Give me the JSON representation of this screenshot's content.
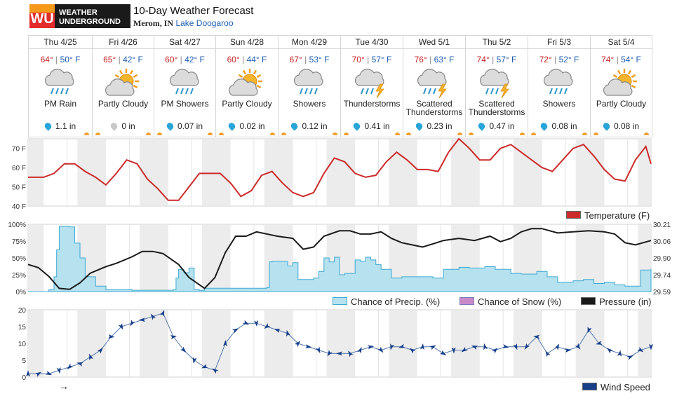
{
  "header": {
    "logo_text_1": "WEATHER",
    "logo_text_2": "UNDERGROUND",
    "title": "10-Day Weather Forecast",
    "city": "Merom, IN",
    "station": "Lake Doogaroo"
  },
  "days": [
    {
      "name": "Thu 4/25",
      "hi": "64°",
      "lo": "50° F",
      "cond": "PM Rain",
      "icon": "rain-icon",
      "precip": "1.1 in"
    },
    {
      "name": "Fri 4/26",
      "hi": "65°",
      "lo": "42° F",
      "cond": "Partly Cloudy",
      "icon": "partly-cloudy-icon",
      "precip": "0 in"
    },
    {
      "name": "Sat 4/27",
      "hi": "60°",
      "lo": "42° F",
      "cond": "PM Showers",
      "icon": "showers-icon",
      "precip": "0.07 in"
    },
    {
      "name": "Sun 4/28",
      "hi": "60°",
      "lo": "44° F",
      "cond": "Partly Cloudy",
      "icon": "partly-cloudy-icon",
      "precip": "0.02 in"
    },
    {
      "name": "Mon 4/29",
      "hi": "67°",
      "lo": "53° F",
      "cond": "Showers",
      "icon": "showers-icon",
      "precip": "0.12 in"
    },
    {
      "name": "Tue 4/30",
      "hi": "70°",
      "lo": "57° F",
      "cond": "Thunderstorms",
      "icon": "thunderstorm-icon",
      "precip": "0.41 in"
    },
    {
      "name": "Wed 5/1",
      "hi": "76°",
      "lo": "63° F",
      "cond": "Scattered Thunderstorms",
      "icon": "thunderstorm-icon",
      "precip": "0.23 in"
    },
    {
      "name": "Thu 5/2",
      "hi": "74°",
      "lo": "57° F",
      "cond": "Scattered Thunderstorms",
      "icon": "thunderstorm-icon",
      "precip": "0.47 in"
    },
    {
      "name": "Fri 5/3",
      "hi": "72°",
      "lo": "52° F",
      "cond": "Showers",
      "icon": "showers-icon",
      "precip": "0.08 in"
    },
    {
      "name": "Sat 5/4",
      "hi": "74°",
      "lo": "54° F",
      "cond": "Partly Cloudy",
      "icon": "partly-cloudy-icon",
      "precip": "0.08 in"
    }
  ],
  "legends": {
    "temperature": "Temperature (F)",
    "precip": "Chance of Precip. (%)",
    "snow": "Chance of Snow (%)",
    "pressure": "Pressure (in)",
    "wind": "Wind Speed"
  },
  "colors": {
    "temperature": "#cc2a2a",
    "precip_fill": "#b6e1ef",
    "precip_line": "#3fa9d0",
    "snow": "#c88bc8",
    "pressure": "#1a1a1a",
    "wind": "#173f8a",
    "night_band": "#ececec"
  },
  "arrow_glyph": "→",
  "chart_data": [
    {
      "type": "line",
      "name": "temperature",
      "ylabel_ticks": [
        "70 F",
        "60 F",
        "50 F",
        "40 F"
      ],
      "ylim": [
        40,
        75
      ],
      "x_hours": [
        0,
        6,
        10,
        14,
        18,
        22,
        26,
        30,
        34,
        38,
        42,
        46,
        50,
        54,
        58,
        62,
        66,
        70,
        74,
        78,
        82,
        86,
        90,
        94,
        98,
        102,
        106,
        110,
        114,
        118,
        122,
        126,
        130,
        134,
        138,
        142,
        146,
        150,
        154,
        158,
        162,
        166,
        170,
        174,
        178,
        182,
        186,
        190,
        194,
        198,
        202,
        206,
        210,
        214,
        218,
        222,
        226,
        230,
        234,
        238,
        240
      ],
      "values": [
        55,
        55,
        57,
        62,
        62,
        58,
        55,
        51,
        57,
        64,
        62,
        54,
        49,
        43,
        43,
        50,
        57,
        57,
        57,
        52,
        45,
        48,
        56,
        58,
        52,
        47,
        45,
        47,
        57,
        65,
        63,
        57,
        55,
        56,
        63,
        68,
        64,
        59,
        59,
        58,
        68,
        75,
        70,
        64,
        64,
        70,
        72,
        68,
        64,
        60,
        58,
        64,
        70,
        72,
        66,
        59,
        54,
        53,
        64,
        71,
        62
      ]
    },
    {
      "type": "area",
      "name": "chance of precip",
      "ylabel_ticks": [
        "100%",
        "75%",
        "50%",
        "25%",
        "0%"
      ],
      "ylim": [
        0,
        100
      ],
      "x_hours": [
        0,
        8,
        10,
        11,
        12,
        16,
        18,
        20,
        22,
        26,
        30,
        40,
        50,
        56,
        57,
        58,
        60,
        62,
        64,
        66,
        68,
        80,
        92,
        93,
        94,
        100,
        102,
        104,
        110,
        112,
        114,
        116,
        118,
        120,
        122,
        126,
        128,
        130,
        132,
        134,
        136,
        140,
        144,
        150,
        156,
        160,
        166,
        170,
        176,
        180,
        186,
        190,
        196,
        200,
        204,
        210,
        214,
        218,
        222,
        226,
        230,
        236,
        240
      ],
      "values": [
        0,
        3,
        22,
        62,
        97,
        96,
        72,
        50,
        22,
        8,
        3,
        2,
        2,
        3,
        20,
        33,
        28,
        35,
        3,
        2,
        5,
        5,
        6,
        44,
        45,
        38,
        43,
        18,
        20,
        30,
        50,
        44,
        51,
        25,
        27,
        47,
        45,
        51,
        47,
        40,
        33,
        20,
        22,
        22,
        20,
        33,
        36,
        35,
        37,
        33,
        27,
        26,
        30,
        22,
        14,
        16,
        18,
        12,
        14,
        10,
        8,
        32,
        34
      ]
    },
    {
      "type": "line",
      "name": "pressure",
      "ylabel_ticks": [
        "30.21",
        "30.06",
        "29.90",
        "29.74",
        "29.59"
      ],
      "ylim": [
        29.59,
        30.21
      ],
      "x_hours": [
        0,
        4,
        8,
        12,
        16,
        20,
        24,
        30,
        34,
        40,
        44,
        48,
        52,
        58,
        62,
        68,
        72,
        76,
        80,
        84,
        88,
        92,
        96,
        102,
        106,
        110,
        114,
        120,
        124,
        128,
        132,
        136,
        140,
        144,
        148,
        152,
        156,
        160,
        166,
        172,
        178,
        182,
        186,
        190,
        194,
        198,
        204,
        210,
        216,
        222,
        226,
        230,
        234,
        240
      ],
      "values": [
        29.84,
        29.81,
        29.73,
        29.62,
        29.61,
        29.67,
        29.76,
        29.82,
        29.85,
        29.91,
        29.96,
        29.96,
        29.94,
        29.84,
        29.72,
        29.62,
        29.72,
        29.95,
        30.1,
        30.1,
        30.14,
        30.12,
        30.1,
        30.08,
        29.98,
        30.0,
        30.1,
        30.15,
        30.15,
        30.12,
        30.12,
        30.14,
        30.08,
        30.04,
        30.02,
        30.0,
        30.03,
        30.06,
        30.08,
        30.06,
        30.1,
        30.05,
        30.08,
        30.14,
        30.17,
        30.17,
        30.13,
        30.14,
        30.15,
        30.14,
        30.12,
        30.04,
        30.02,
        30.06
      ]
    },
    {
      "type": "line",
      "name": "wind speed",
      "ylabel_ticks": [
        "20",
        "15",
        "10",
        "5",
        "0"
      ],
      "ylim": [
        0,
        20
      ],
      "x_hours": [
        0,
        4,
        8,
        12,
        16,
        20,
        24,
        28,
        32,
        36,
        40,
        44,
        48,
        52,
        56,
        60,
        64,
        68,
        72,
        76,
        80,
        84,
        88,
        92,
        96,
        100,
        104,
        108,
        112,
        116,
        120,
        124,
        128,
        132,
        136,
        140,
        144,
        148,
        152,
        156,
        160,
        164,
        168,
        172,
        176,
        180,
        184,
        188,
        192,
        196,
        200,
        204,
        208,
        212,
        216,
        220,
        224,
        228,
        232,
        236,
        240
      ],
      "values": [
        1,
        1,
        1,
        2,
        3,
        4,
        6,
        8,
        12,
        15,
        16,
        17,
        18,
        19,
        12,
        8,
        5,
        3,
        2,
        10,
        14,
        16,
        16,
        15,
        14,
        13,
        10,
        9,
        8,
        7,
        7,
        7,
        8,
        9,
        8,
        9,
        9,
        8,
        9,
        9,
        7,
        8,
        8,
        9,
        9,
        8,
        9,
        9,
        9,
        12,
        7,
        9,
        8,
        9,
        14,
        10,
        8,
        7,
        6,
        8,
        9
      ]
    }
  ]
}
